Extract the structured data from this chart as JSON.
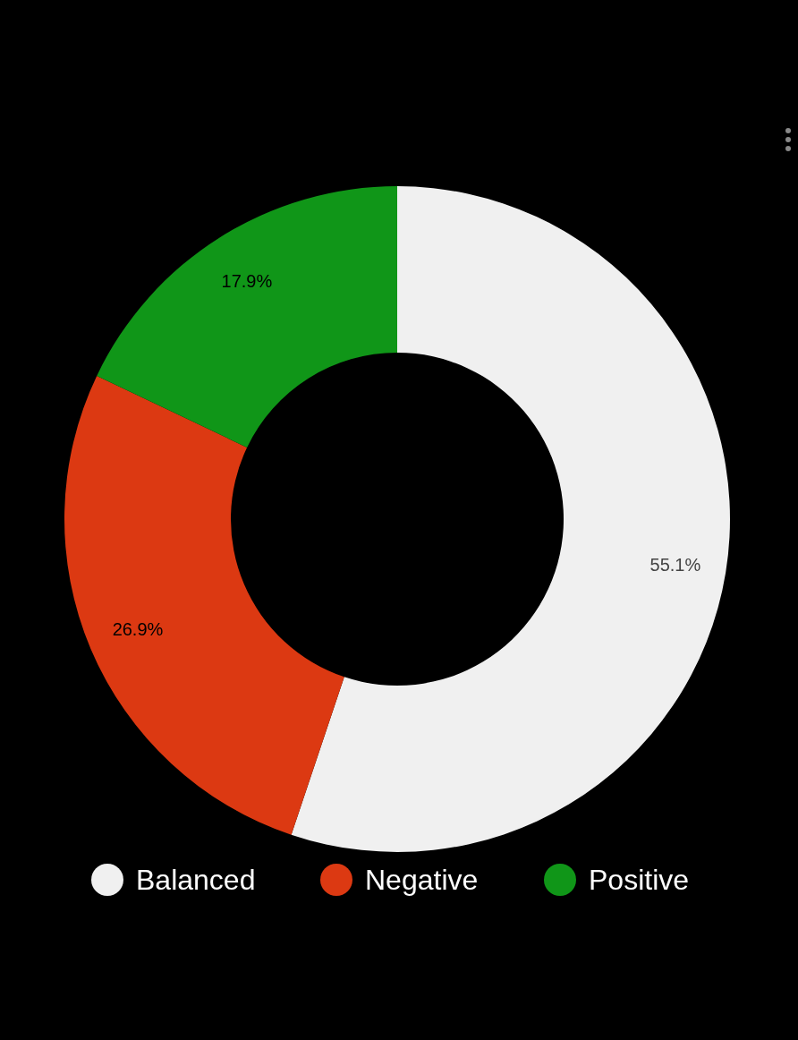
{
  "chart_data": {
    "type": "donut",
    "categories": [
      "Balanced",
      "Negative",
      "Positive"
    ],
    "values": [
      55.1,
      26.9,
      17.9
    ],
    "colors": [
      "#f0f0f0",
      "#dc3912",
      "#109618"
    ],
    "value_labels": [
      "55.1%",
      "26.9%",
      "17.9%"
    ],
    "legend": "bottom"
  }
}
